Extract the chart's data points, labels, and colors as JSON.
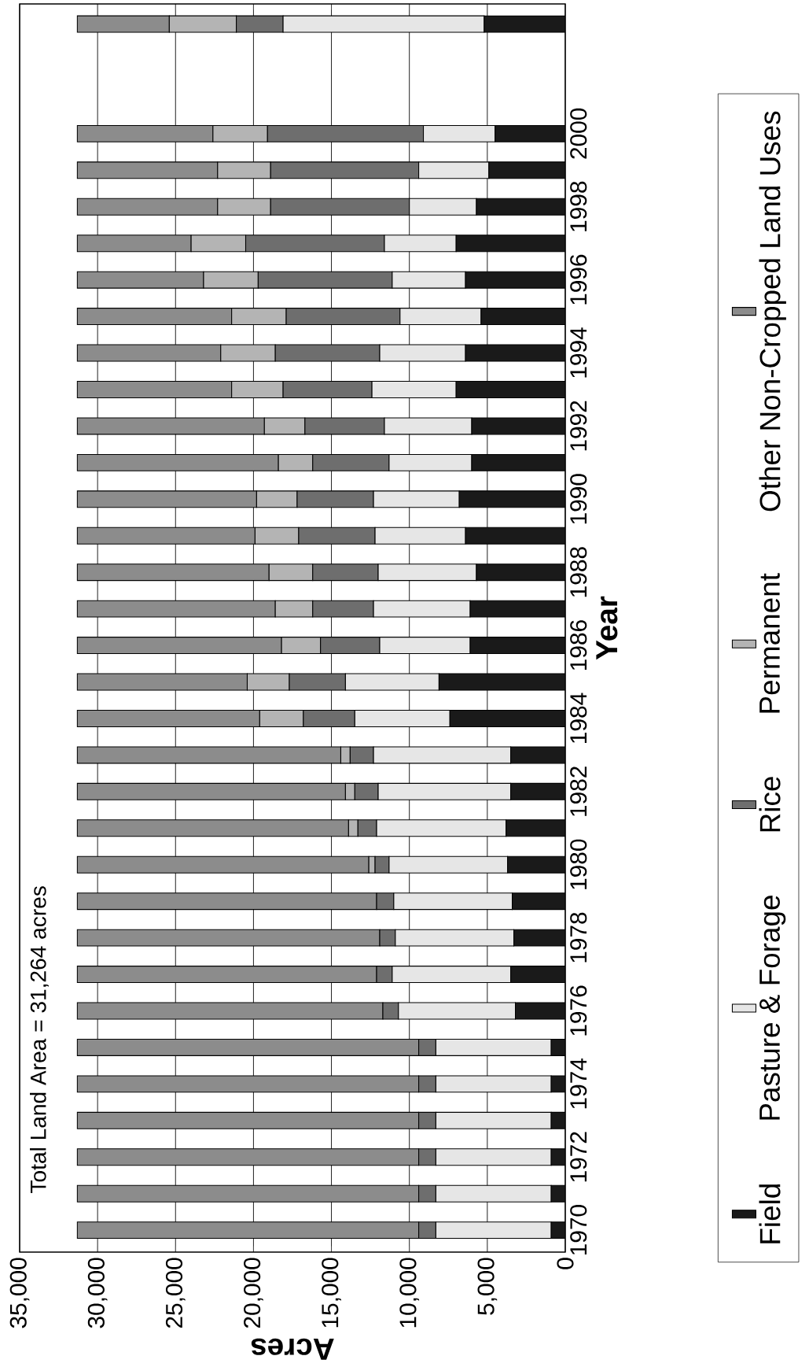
{
  "chart_data": {
    "type": "bar",
    "stacked": true,
    "orientation": "horizontal",
    "xlabel": "Acres",
    "ylabel": "Year",
    "categories": [
      null,
      null,
      null,
      "2000",
      null,
      "1998",
      null,
      "1996",
      null,
      "1994",
      null,
      "1992",
      null,
      "1990",
      null,
      "1988",
      null,
      "1986",
      null,
      "1984",
      null,
      "1982",
      null,
      "1980",
      null,
      "1978",
      null,
      "1976",
      null,
      "1974",
      null,
      "1972",
      null,
      "1970"
    ],
    "series": [
      {
        "name": "Field",
        "color": "#1a1a1a",
        "values": [
          5200,
          null,
          null,
          4500,
          4900,
          5700,
          7000,
          6400,
          5400,
          6400,
          7000,
          6000,
          6000,
          6800,
          6400,
          5700,
          6100,
          6100,
          8100,
          7400,
          3500,
          3500,
          3800,
          3700,
          3400,
          3300,
          3500,
          3200,
          900,
          900,
          900,
          900,
          900,
          900
        ]
      },
      {
        "name": "Pasture & Forage",
        "color": "#e6e6e6",
        "values": [
          12900,
          null,
          null,
          4600,
          4500,
          4300,
          4600,
          4700,
          5200,
          5500,
          5400,
          5600,
          5300,
          5500,
          5800,
          6300,
          6200,
          5800,
          6000,
          6100,
          8800,
          8500,
          8300,
          7600,
          7600,
          7600,
          7600,
          7500,
          7400,
          7400,
          7400,
          7400,
          7400,
          7400
        ]
      },
      {
        "name": "Rice",
        "color": "#6e6e6e",
        "values": [
          3000,
          null,
          null,
          10000,
          9500,
          8900,
          8900,
          8600,
          7300,
          6700,
          5700,
          5100,
          4900,
          4900,
          4900,
          4200,
          3900,
          3800,
          3600,
          3300,
          1500,
          1500,
          1200,
          900,
          1100,
          1000,
          1000,
          1000,
          1100,
          1100,
          1100,
          1100,
          1100,
          1100
        ]
      },
      {
        "name": "Permanent",
        "color": "#b4b4b4",
        "values": [
          4300,
          null,
          null,
          3500,
          3400,
          3400,
          3500,
          3500,
          3500,
          3500,
          3300,
          2600,
          2200,
          2600,
          2800,
          2800,
          2400,
          2500,
          2700,
          2800,
          600,
          600,
          600,
          400,
          0,
          0,
          0,
          0,
          0,
          0,
          0,
          0,
          0,
          0
        ]
      },
      {
        "name": "Other Non-Cropped Land Uses",
        "color": "#8c8c8c",
        "values": [
          5900,
          null,
          null,
          8700,
          9000,
          9000,
          7300,
          8100,
          9900,
          9200,
          9900,
          12000,
          12900,
          11500,
          11400,
          12300,
          12700,
          13100,
          10900,
          11700,
          16900,
          17200,
          17400,
          18700,
          19200,
          19400,
          19200,
          19600,
          21900,
          21900,
          21900,
          21900,
          21900,
          21900
        ]
      }
    ],
    "xlim": [
      35000,
      0
    ],
    "xticks": [
      {
        "value": 35000,
        "label": "35,000"
      },
      {
        "value": 30000,
        "label": "30,000"
      },
      {
        "value": 25000,
        "label": "25,000"
      },
      {
        "value": 20000,
        "label": "20,000"
      },
      {
        "value": 15000,
        "label": "15,000"
      },
      {
        "value": 10000,
        "label": "10,000"
      },
      {
        "value": 5000,
        "label": "5,000"
      },
      0
    ],
    "grid": "x",
    "legend": "right",
    "annotations": [
      "Total Land Area = 31,264 acres"
    ]
  }
}
